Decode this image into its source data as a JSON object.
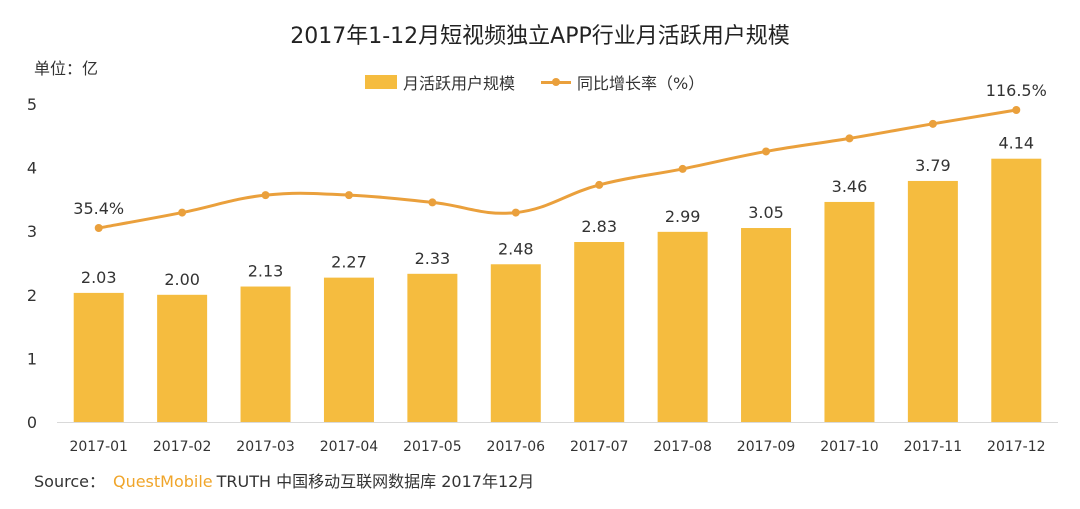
{
  "chart_data": {
    "type": "bar",
    "title": "2017年1-12月短视频独立APP行业月活跃用户规模",
    "unit_label": "单位：亿",
    "categories": [
      "2017-01",
      "2017-02",
      "2017-03",
      "2017-04",
      "2017-05",
      "2017-06",
      "2017-07",
      "2017-08",
      "2017-09",
      "2017-10",
      "2017-11",
      "2017-12"
    ],
    "ylim": [
      0,
      5
    ],
    "yticks": [
      "0",
      "1",
      "2",
      "3",
      "4",
      "5"
    ],
    "grid": false,
    "legend_position": "top",
    "series": [
      {
        "name": "月活跃用户规模",
        "type": "bar",
        "color": "#f5bc3f",
        "values": [
          2.03,
          2.0,
          2.13,
          2.27,
          2.33,
          2.48,
          2.83,
          2.99,
          3.05,
          3.46,
          3.79,
          4.14
        ],
        "labels": [
          "2.03",
          "2.00",
          "2.13",
          "2.27",
          "2.33",
          "2.48",
          "2.83",
          "2.99",
          "3.05",
          "3.46",
          "3.79",
          "4.14"
        ]
      },
      {
        "name": "同比增长率（%）",
        "type": "line",
        "color": "#eaa03c",
        "values": [
          35.4,
          46,
          58,
          58,
          53,
          46,
          65,
          76,
          88,
          97,
          107,
          116.5
        ],
        "labels": [
          "35.4%",
          "",
          "",
          "",
          "",
          "",
          "",
          "",
          "",
          "",
          "",
          "116.5%"
        ]
      }
    ]
  },
  "source": {
    "prefix": "Source：",
    "brand": "QuestMobile",
    "text": "TRUTH 中国移动互联网数据库 2017年12月"
  }
}
